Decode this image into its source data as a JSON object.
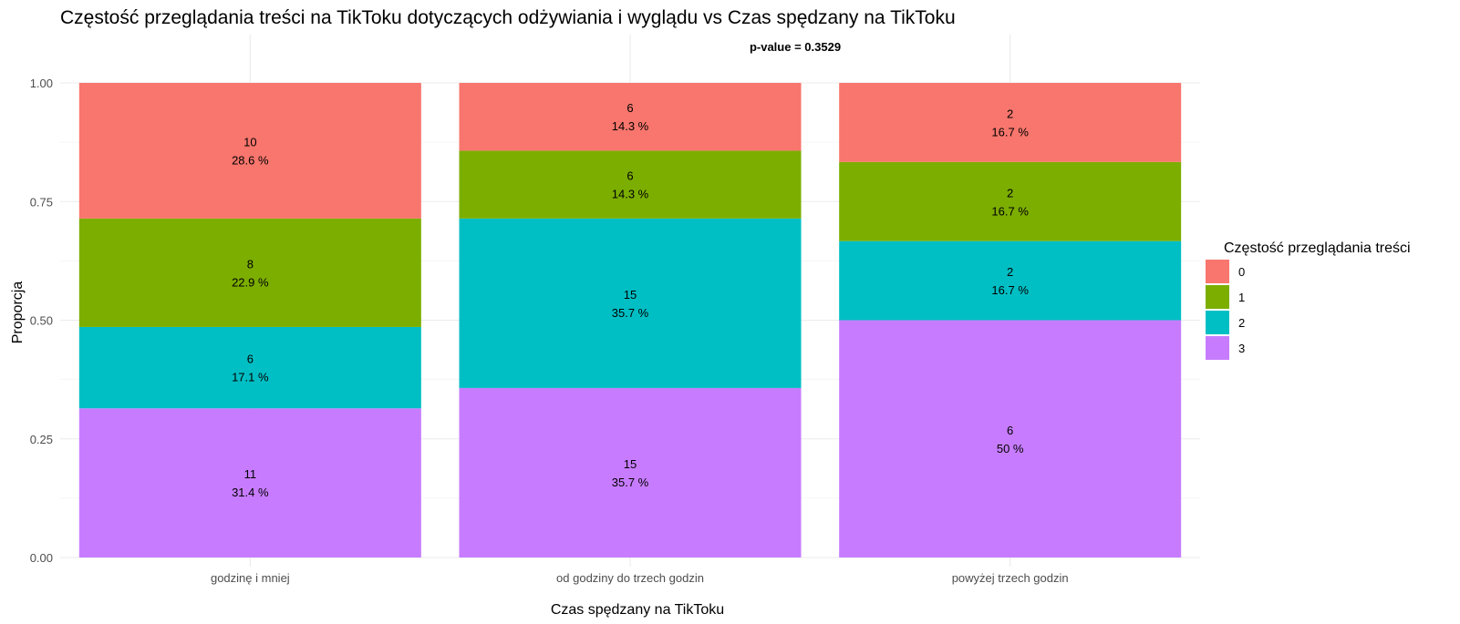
{
  "chart_data": {
    "type": "bar",
    "stacked": true,
    "normalized": true,
    "title": "Częstość przeglądania treści na TikToku dotyczących odżywiania i wyglądu vs Czas spędzany na TikToku",
    "subtitle": "p-value = 0.3529",
    "xlabel": "Czas spędzany na TikToku",
    "ylabel": "Proporcja",
    "ylim": [
      0,
      1
    ],
    "yticks": [
      "0.00",
      "0.25",
      "0.50",
      "0.75",
      "1.00"
    ],
    "categories": [
      "godzinę i mniej",
      "od godziny do trzech godzin",
      "powyżej trzech godzin"
    ],
    "legend_title": "Częstość przeglądania treści",
    "legend_position": "right",
    "grid": true,
    "series": [
      {
        "name": "0",
        "color": "#F8766D",
        "counts": [
          10,
          6,
          2
        ],
        "percent_labels": [
          "28.6 %",
          "14.3 %",
          "16.7 %"
        ]
      },
      {
        "name": "1",
        "color": "#7CAE00",
        "counts": [
          8,
          6,
          2
        ],
        "percent_labels": [
          "22.9 %",
          "14.3 %",
          "16.7 %"
        ]
      },
      {
        "name": "2",
        "color": "#00BFC4",
        "counts": [
          6,
          15,
          2
        ],
        "percent_labels": [
          "17.1 %",
          "35.7 %",
          "16.7 %"
        ]
      },
      {
        "name": "3",
        "color": "#C77CFF",
        "counts": [
          11,
          15,
          6
        ],
        "percent_labels": [
          "31.4 %",
          "35.7 %",
          "50 %"
        ]
      }
    ]
  }
}
